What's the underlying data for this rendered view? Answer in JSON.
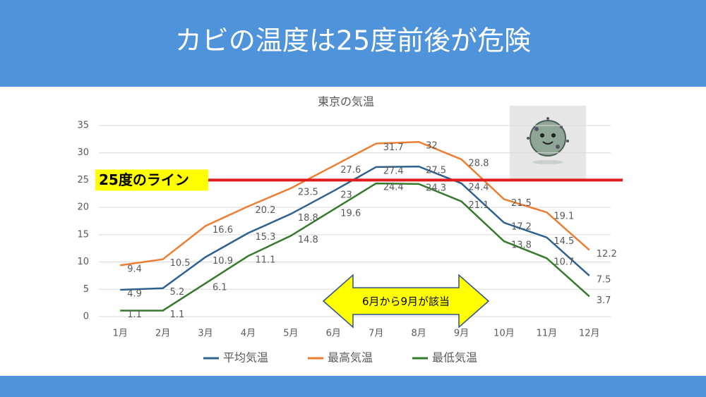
{
  "header": {
    "title": "カビの温度は25度前後が危険"
  },
  "chart_data": {
    "type": "line",
    "title": "東京の気温",
    "categories": [
      "1月",
      "2月",
      "3月",
      "4月",
      "5月",
      "6月",
      "7月",
      "8月",
      "9月",
      "10月",
      "11月",
      "12月"
    ],
    "series": [
      {
        "name": "平均気温",
        "color": "#2e6190",
        "values": [
          4.9,
          5.2,
          10.9,
          15.3,
          18.8,
          23,
          27.4,
          27.5,
          24.4,
          17.2,
          14.5,
          7.5
        ]
      },
      {
        "name": "最高気温",
        "color": "#ed7d31",
        "values": [
          9.4,
          10.5,
          16.6,
          20.2,
          23.5,
          27.6,
          31.7,
          32,
          28.8,
          21.5,
          19.1,
          12.2
        ]
      },
      {
        "name": "最低気温",
        "color": "#357a2a",
        "values": [
          1.1,
          1.1,
          6.1,
          11.1,
          14.8,
          19.6,
          24.4,
          24.3,
          21.1,
          13.8,
          10.7,
          3.7
        ]
      }
    ],
    "ylim": [
      0,
      35
    ],
    "yticks": [
      0,
      5,
      10,
      15,
      20,
      25,
      30,
      35
    ],
    "grid": true,
    "threshold": {
      "value": 25,
      "label": "25度のライン",
      "color": "#e01b1b"
    },
    "annotation": "6月から9月が該当"
  }
}
